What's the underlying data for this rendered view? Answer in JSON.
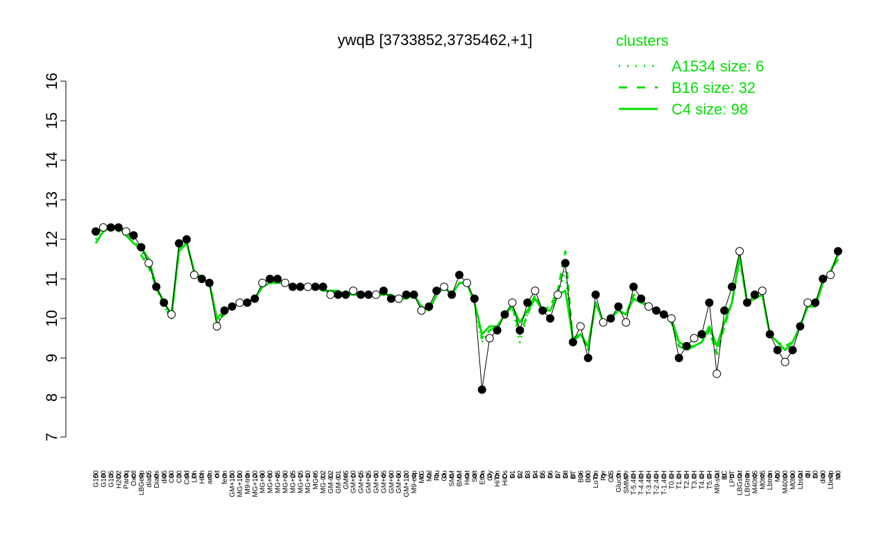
{
  "chart_data": {
    "type": "line",
    "title": "ywqB [3733852,3735462,+1]",
    "xlabel": "",
    "ylabel": "",
    "ylim": [
      7,
      16
    ],
    "yticks": [
      7,
      8,
      9,
      10,
      11,
      12,
      13,
      14,
      15,
      16
    ],
    "xticks": [
      "G150",
      "G180",
      "G135",
      "H2O2",
      "Paraq",
      "Oxctl",
      "LBGexp",
      "dia15",
      "Diami",
      "dia5",
      "C90",
      "C30",
      "Cold",
      "LPh",
      "HPh",
      "aero",
      "nit",
      "ferm",
      "GM+150",
      "MG+150",
      "M9-tran",
      "MG+120",
      "MG+90",
      "MG+60",
      "MG+45",
      "MG+30",
      "MG+25",
      "MG+15",
      "MG+10",
      "MG+5",
      "MG-0.2",
      "GM-0.2",
      "GM-0.1",
      "GM+5",
      "GM+10",
      "GM+15",
      "GM+25",
      "GM+30",
      "GM+45",
      "GM+60",
      "GM+90",
      "GM+120",
      "M9-exp",
      "M/G",
      "Mal",
      "Fru",
      "Glu",
      "SMM",
      "BMM",
      "Heat",
      "Salt",
      "Etha",
      "Gly",
      "HiTm",
      "HiOs",
      "S1",
      "S2",
      "S3",
      "S4",
      "S5",
      "S6",
      "S7",
      "S8",
      "BT",
      "B36",
      "B60",
      "LoTm",
      "Pyr",
      "G/S",
      "Glucon",
      "SMMPr",
      "T-5.40H",
      "T-4.40H",
      "T-3.40H",
      "T-2.40H",
      "T-1.40H",
      "T0.0H",
      "T1.0H",
      "T2.0H",
      "T3.0H",
      "T4.0H",
      "T5.0H",
      "M9-stat",
      "BC",
      "LPhT",
      "LBGstat",
      "LBGtran",
      "M40t45",
      "M0t45",
      "Lbtran",
      "Mt0",
      "M40t90",
      "M0t90",
      "Lbstat",
      "BI",
      "S0",
      "dia0",
      "Lbexp",
      "M0"
    ],
    "series": [
      {
        "name": "C4 size: 98",
        "style": "solid",
        "color": "#00e000",
        "values": [
          11.9,
          12.2,
          12.3,
          12.3,
          12.1,
          11.9,
          11.8,
          11.5,
          10.8,
          10.4,
          10.1,
          11.7,
          11.9,
          11.2,
          11.0,
          10.9,
          10.0,
          10.2,
          10.3,
          10.4,
          10.4,
          10.5,
          10.8,
          10.9,
          10.9,
          10.9,
          10.8,
          10.8,
          10.8,
          10.8,
          10.7,
          10.7,
          10.7,
          10.6,
          10.6,
          10.6,
          10.6,
          10.6,
          10.6,
          10.6,
          10.5,
          10.5,
          10.6,
          10.3,
          10.2,
          10.6,
          10.8,
          10.6,
          10.9,
          10.9,
          10.4,
          9.6,
          9.8,
          9.8,
          10.1,
          10.3,
          9.9,
          10.2,
          10.5,
          10.2,
          10.2,
          10.6,
          10.7,
          9.5,
          9.6,
          9.3,
          10.4,
          9.9,
          10.0,
          10.2,
          10.1,
          10.5,
          10.4,
          10.3,
          10.2,
          10.1,
          10.0,
          9.4,
          9.3,
          9.3,
          9.4,
          9.8,
          9.3,
          9.9,
          10.4,
          11.6,
          10.4,
          10.5,
          10.6,
          9.6,
          9.4,
          9.2,
          9.4,
          9.8,
          10.3,
          10.3,
          10.9,
          11.2,
          11.6
        ]
      },
      {
        "name": "B16 size: 32",
        "style": "dashed",
        "color": "#00e000",
        "values": [
          12.1,
          12.3,
          12.3,
          12.3,
          12.2,
          12.0,
          11.6,
          11.3,
          10.8,
          10.3,
          10.0,
          11.8,
          11.9,
          11.2,
          11.0,
          11.0,
          9.9,
          10.1,
          10.3,
          10.4,
          10.4,
          10.5,
          10.8,
          10.9,
          11.0,
          10.9,
          10.8,
          10.8,
          10.8,
          10.8,
          10.7,
          10.7,
          10.6,
          10.6,
          10.6,
          10.6,
          10.6,
          10.6,
          10.6,
          10.5,
          10.5,
          10.5,
          10.6,
          10.3,
          10.2,
          10.6,
          10.8,
          10.6,
          10.9,
          10.9,
          10.4,
          9.5,
          9.7,
          9.8,
          10.1,
          10.3,
          9.6,
          10.1,
          10.6,
          10.2,
          10.3,
          10.7,
          11.7,
          9.4,
          9.6,
          9.2,
          10.4,
          9.9,
          10.0,
          10.2,
          10.1,
          10.6,
          10.4,
          10.3,
          10.2,
          10.1,
          9.9,
          9.3,
          9.2,
          9.3,
          9.4,
          9.7,
          9.1,
          9.8,
          10.4,
          11.5,
          10.4,
          10.5,
          10.6,
          9.6,
          9.4,
          9.3,
          9.4,
          9.8,
          10.3,
          10.3,
          10.9,
          11.2,
          11.5
        ]
      },
      {
        "name": "A1534 size: 6",
        "style": "dotted",
        "color": "#00e000",
        "values": [
          12.0,
          12.2,
          12.3,
          12.2,
          12.1,
          12.0,
          11.7,
          11.4,
          10.8,
          10.3,
          10.0,
          11.8,
          11.9,
          11.2,
          11.0,
          10.9,
          9.9,
          10.2,
          10.3,
          10.4,
          10.4,
          10.5,
          10.8,
          10.9,
          10.9,
          10.9,
          10.8,
          10.8,
          10.8,
          10.8,
          10.7,
          10.7,
          10.6,
          10.6,
          10.6,
          10.6,
          10.6,
          10.6,
          10.6,
          10.5,
          10.5,
          10.5,
          10.6,
          10.3,
          10.2,
          10.6,
          10.8,
          10.6,
          10.9,
          10.9,
          10.4,
          9.4,
          9.7,
          9.8,
          10.1,
          10.3,
          9.4,
          10.1,
          10.5,
          10.2,
          10.2,
          10.6,
          11.2,
          9.4,
          9.6,
          9.2,
          10.4,
          9.9,
          10.0,
          10.2,
          10.1,
          10.5,
          10.4,
          10.3,
          10.2,
          10.1,
          9.9,
          9.3,
          9.2,
          9.3,
          9.4,
          9.7,
          9.2,
          9.9,
          10.4,
          11.5,
          10.4,
          10.5,
          10.6,
          9.6,
          9.4,
          9.2,
          9.4,
          9.8,
          10.3,
          10.3,
          10.9,
          11.2,
          11.5
        ]
      },
      {
        "name": "",
        "style": "points",
        "color": "#000000",
        "values": [
          12.2,
          12.3,
          12.3,
          12.3,
          12.2,
          12.1,
          11.8,
          11.4,
          10.8,
          10.4,
          10.1,
          11.9,
          12.0,
          11.1,
          11.0,
          10.9,
          9.8,
          10.2,
          10.3,
          10.4,
          10.4,
          10.5,
          10.9,
          11.0,
          11.0,
          10.9,
          10.8,
          10.8,
          10.8,
          10.8,
          10.8,
          10.6,
          10.6,
          10.6,
          10.7,
          10.6,
          10.6,
          10.6,
          10.7,
          10.5,
          10.5,
          10.6,
          10.6,
          10.2,
          10.3,
          10.7,
          10.8,
          10.6,
          11.1,
          10.9,
          10.5,
          8.2,
          9.5,
          9.7,
          10.1,
          10.4,
          9.7,
          10.4,
          10.7,
          10.2,
          10.0,
          10.6,
          11.4,
          9.4,
          9.8,
          9.0,
          10.6,
          9.9,
          10.0,
          10.3,
          9.9,
          10.8,
          10.5,
          10.3,
          10.2,
          10.1,
          10.0,
          9.0,
          9.3,
          9.5,
          9.6,
          10.4,
          8.6,
          10.2,
          10.8,
          11.7,
          10.4,
          10.6,
          10.7,
          9.6,
          9.2,
          8.9,
          9.2,
          9.8,
          10.4,
          10.4,
          11.0,
          11.1,
          11.7
        ]
      }
    ],
    "legend": {
      "title": "clusters",
      "position": "top-right",
      "entries": [
        "A1534 size: 6",
        "B16 size: 32",
        "C4 size: 98"
      ]
    },
    "grid": false
  }
}
